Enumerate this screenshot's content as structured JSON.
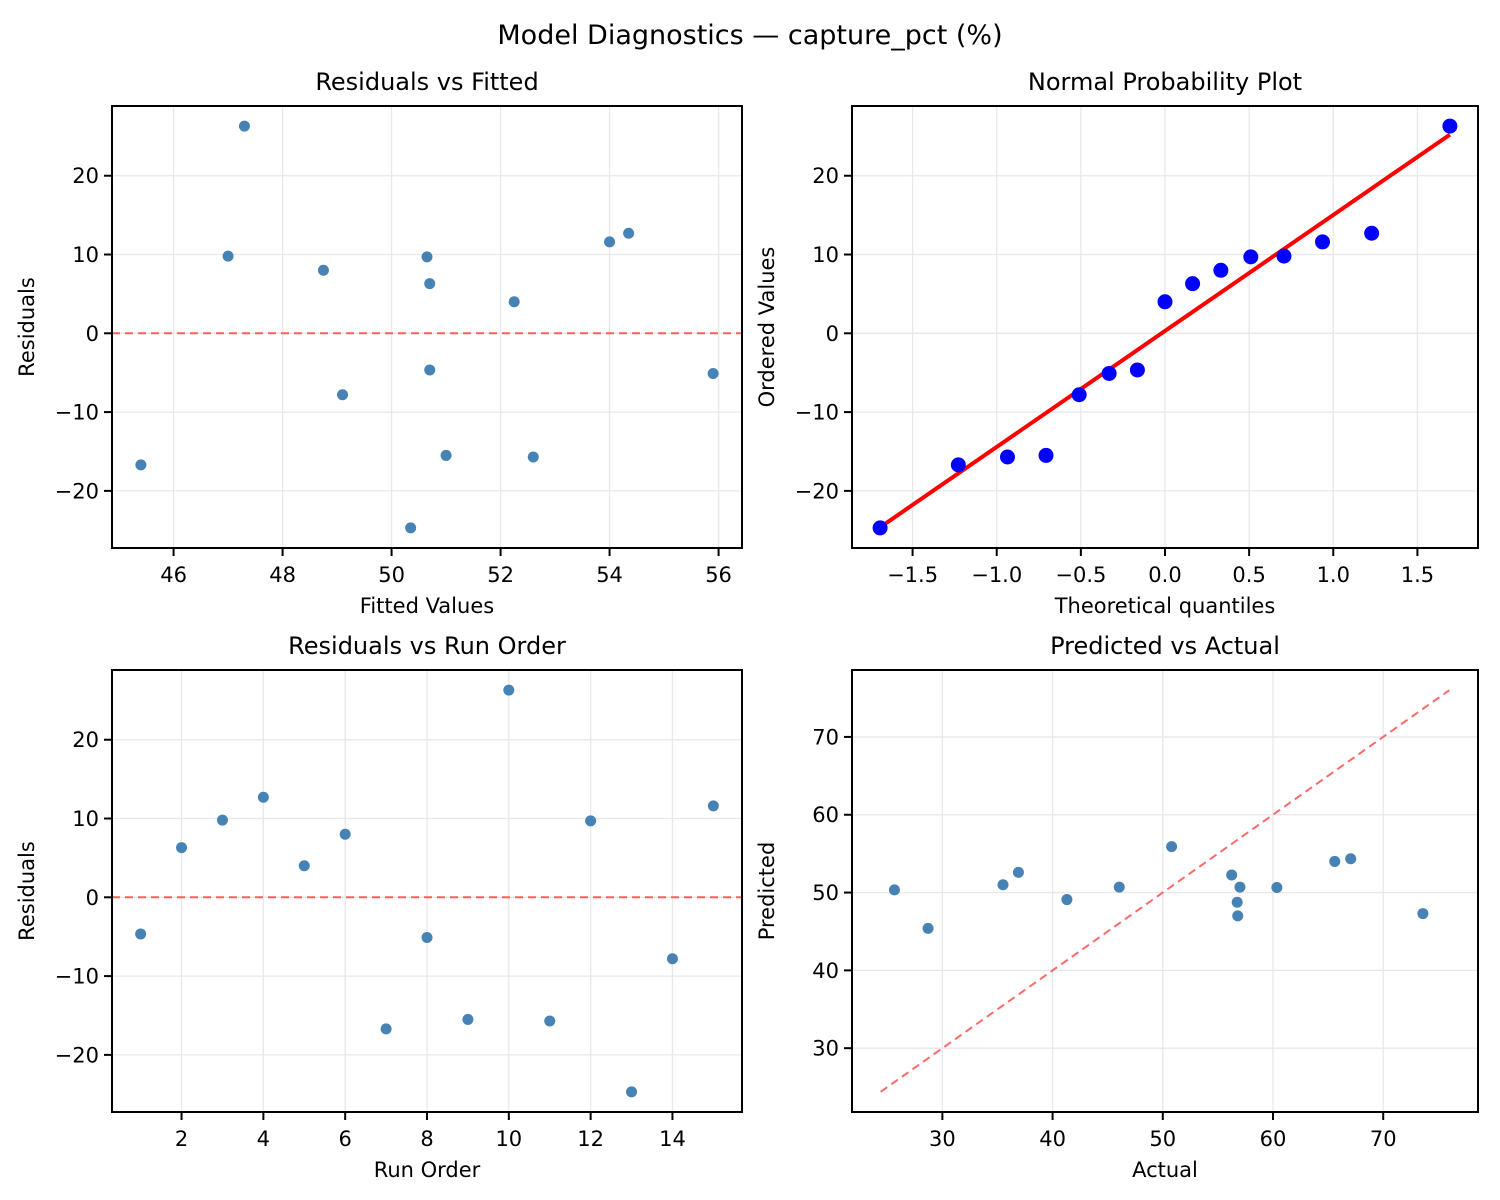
{
  "figure": {
    "suptitle": "Model Diagnostics — capture_pct (%)",
    "background_color": "#ffffff",
    "grid_color": "#e8e8e8",
    "spine_color": "#000000",
    "scatter_color": "#4682B4",
    "qq_point_color": "#0000ff",
    "fit_line_color": "#ff0000",
    "reference_dashed_color": "#ff4444"
  },
  "chart_data": [
    {
      "id": "residuals_vs_fitted",
      "type": "scatter",
      "title": "Residuals vs Fitted",
      "xlabel": "Fitted Values",
      "ylabel": "Residuals",
      "xlim": [
        44.87,
        56.43
      ],
      "ylim": [
        -27.25,
        28.85
      ],
      "xticks": [
        46,
        48,
        50,
        52,
        54,
        56
      ],
      "xtick_labels": [
        "46",
        "48",
        "50",
        "52",
        "54",
        "56"
      ],
      "yticks": [
        -20,
        -10,
        0,
        10,
        20
      ],
      "ytick_labels": [
        "−20",
        "−10",
        "0",
        "10",
        "20"
      ],
      "grid": true,
      "point_color": "#4682B4",
      "points": [
        [
          45.4,
          -16.7
        ],
        [
          47.0,
          9.8
        ],
        [
          47.3,
          26.3
        ],
        [
          48.75,
          8.0
        ],
        [
          49.1,
          -7.8
        ],
        [
          50.35,
          -24.7
        ],
        [
          50.65,
          9.7
        ],
        [
          50.7,
          6.3
        ],
        [
          50.7,
          -4.65
        ],
        [
          51.0,
          -15.5
        ],
        [
          52.25,
          4.0
        ],
        [
          52.6,
          -15.7
        ],
        [
          54.0,
          11.6
        ],
        [
          54.35,
          12.7
        ],
        [
          55.9,
          -5.1
        ]
      ],
      "ref_lines": [
        {
          "type": "hline",
          "y": 0,
          "color": "#ff4444",
          "width": 2,
          "dashed": true,
          "opacity": 0.85
        }
      ]
    },
    {
      "id": "normal_probability",
      "type": "scatter",
      "title": "Normal Probability Plot",
      "xlabel": "Theoretical quantiles",
      "ylabel": "Ordered Values",
      "xlim": [
        -1.86,
        1.86
      ],
      "ylim": [
        -27.25,
        28.85
      ],
      "xticks": [
        -1.5,
        -1.0,
        -0.5,
        0.0,
        0.5,
        1.0,
        1.5
      ],
      "xtick_labels": [
        "−1.5",
        "−1.0",
        "−0.5",
        "0.0",
        "0.5",
        "1.0",
        "1.5"
      ],
      "yticks": [
        -20,
        -10,
        0,
        10,
        20
      ],
      "ytick_labels": [
        "−20",
        "−10",
        "0",
        "10",
        "20"
      ],
      "grid": true,
      "point_color": "#0000ff",
      "points": [
        [
          -1.693,
          -24.7
        ],
        [
          -1.228,
          -16.7
        ],
        [
          -0.936,
          -15.7
        ],
        [
          -0.707,
          -15.5
        ],
        [
          -0.51,
          -7.8
        ],
        [
          -0.332,
          -5.1
        ],
        [
          -0.164,
          -4.65
        ],
        [
          0.0,
          4.0
        ],
        [
          0.164,
          6.3
        ],
        [
          0.332,
          8.0
        ],
        [
          0.51,
          9.7
        ],
        [
          0.707,
          9.8
        ],
        [
          0.936,
          11.6
        ],
        [
          1.228,
          12.7
        ],
        [
          1.693,
          26.3
        ]
      ],
      "ref_lines": [
        {
          "type": "segment",
          "x1": -1.693,
          "y1": -24.62,
          "x2": 1.693,
          "y2": 25.22,
          "color": "#ff0000",
          "width": 4,
          "dashed": false,
          "opacity": 1
        }
      ]
    },
    {
      "id": "residuals_vs_run_order",
      "type": "scatter",
      "title": "Residuals vs Run Order",
      "xlabel": "Run Order",
      "ylabel": "Residuals",
      "xlim": [
        0.3,
        15.7
      ],
      "ylim": [
        -27.25,
        28.85
      ],
      "xticks": [
        2,
        4,
        6,
        8,
        10,
        12,
        14
      ],
      "xtick_labels": [
        "2",
        "4",
        "6",
        "8",
        "10",
        "12",
        "14"
      ],
      "yticks": [
        -20,
        -10,
        0,
        10,
        20
      ],
      "ytick_labels": [
        "−20",
        "−10",
        "0",
        "10",
        "20"
      ],
      "grid": true,
      "point_color": "#4682B4",
      "points": [
        [
          1,
          -4.65
        ],
        [
          2,
          6.3
        ],
        [
          3,
          9.8
        ],
        [
          4,
          12.7
        ],
        [
          5,
          4.0
        ],
        [
          6,
          8.0
        ],
        [
          7,
          -16.7
        ],
        [
          8,
          -5.1
        ],
        [
          9,
          -15.5
        ],
        [
          10,
          26.3
        ],
        [
          11,
          -15.7
        ],
        [
          12,
          9.7
        ],
        [
          13,
          -24.7
        ],
        [
          14,
          -7.8
        ],
        [
          15,
          11.6
        ]
      ],
      "ref_lines": [
        {
          "type": "hline",
          "y": 0,
          "color": "#ff4444",
          "width": 2,
          "dashed": true,
          "opacity": 0.85
        }
      ]
    },
    {
      "id": "predicted_vs_actual",
      "type": "scatter",
      "title": "Predicted vs Actual",
      "xlabel": "Actual",
      "ylabel": "Predicted",
      "xlim": [
        21.8,
        78.6
      ],
      "ylim": [
        21.8,
        78.6
      ],
      "xticks": [
        30,
        40,
        50,
        60,
        70
      ],
      "xtick_labels": [
        "30",
        "40",
        "50",
        "60",
        "70"
      ],
      "yticks": [
        30,
        40,
        50,
        60,
        70
      ],
      "ytick_labels": [
        "30",
        "40",
        "50",
        "60",
        "70"
      ],
      "grid": true,
      "point_color": "#4682B4",
      "points": [
        [
          25.65,
          50.35
        ],
        [
          28.7,
          45.4
        ],
        [
          35.5,
          51.0
        ],
        [
          36.9,
          52.6
        ],
        [
          41.3,
          49.1
        ],
        [
          46.05,
          50.7
        ],
        [
          50.8,
          55.9
        ],
        [
          56.25,
          52.25
        ],
        [
          56.75,
          48.75
        ],
        [
          56.8,
          47.0
        ],
        [
          57.0,
          50.7
        ],
        [
          60.35,
          50.65
        ],
        [
          65.6,
          54.0
        ],
        [
          67.05,
          54.35
        ],
        [
          73.6,
          47.3
        ]
      ],
      "ref_lines": [
        {
          "type": "segment",
          "x1": 24.4,
          "y1": 24.4,
          "x2": 76.0,
          "y2": 76.0,
          "color": "#ff4444",
          "width": 2,
          "dashed": true,
          "opacity": 0.8
        }
      ]
    }
  ]
}
